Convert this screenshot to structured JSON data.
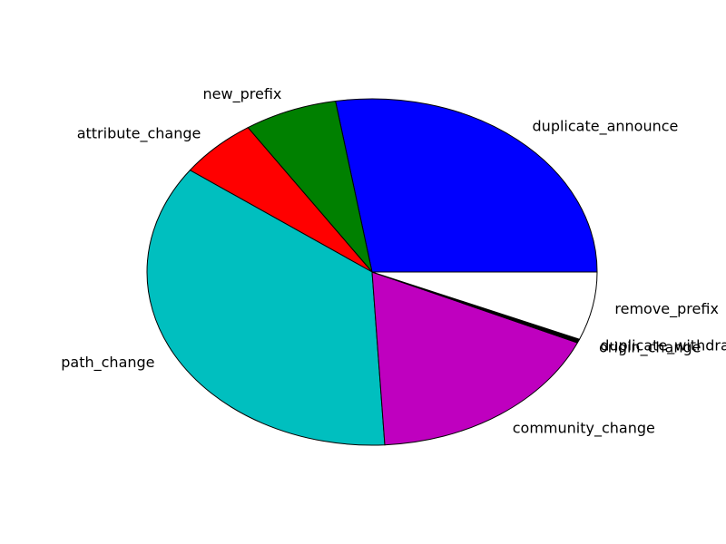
{
  "chart_data": {
    "type": "pie",
    "title": "",
    "start_angle_deg": 0,
    "direction": "counterclockwise",
    "slices": [
      {
        "label": "duplicate_announce",
        "value": 27.6,
        "color": "#0000ff"
      },
      {
        "label": "new_prefix",
        "value": 6.7,
        "color": "#008000"
      },
      {
        "label": "attribute_change",
        "value": 5.7,
        "color": "#ff0000"
      },
      {
        "label": "path_change",
        "value": 35.9,
        "color": "#00bfbf"
      },
      {
        "label": "community_change",
        "value": 17.4,
        "color": "#bf00bf"
      },
      {
        "label": "origin_change",
        "value": 0.3,
        "color": "#000000"
      },
      {
        "label": "duplicate_withdraw",
        "value": 0.05,
        "color": "#000000"
      },
      {
        "label": "remove_prefix",
        "value": 6.35,
        "color": "#ffffff"
      }
    ]
  }
}
